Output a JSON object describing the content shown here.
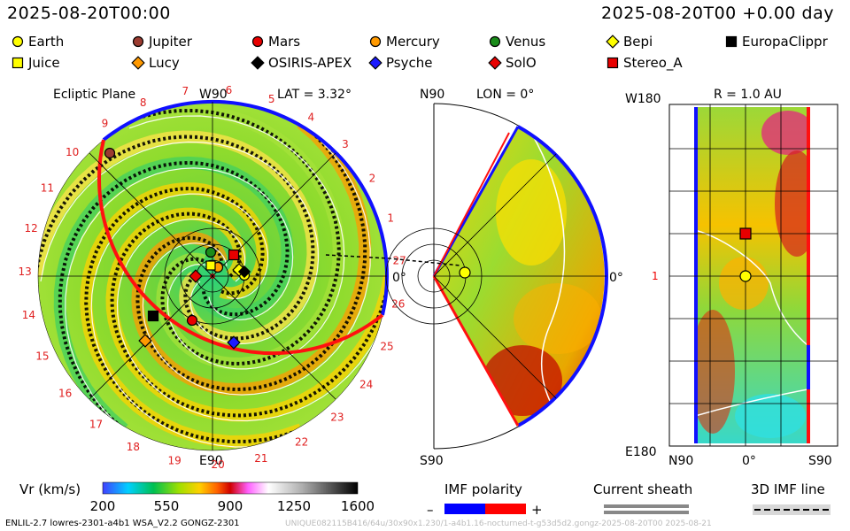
{
  "header": {
    "left_datetime": "2025-08-20T00:00",
    "right_datetime": "2025-08-20T00 +0.00 day"
  },
  "legend": [
    {
      "name": "Earth",
      "shape": "circle",
      "color": "#ffff00"
    },
    {
      "name": "Jupiter",
      "shape": "circle",
      "color": "#9b3b30"
    },
    {
      "name": "Mars",
      "shape": "circle",
      "color": "#e80000"
    },
    {
      "name": "Mercury",
      "shape": "circle",
      "color": "#ff9900"
    },
    {
      "name": "Venus",
      "shape": "circle",
      "color": "#1a8c1a"
    },
    {
      "name": "Bepi",
      "shape": "diamond",
      "color": "#ffff00"
    },
    {
      "name": "EuropaClippr",
      "shape": "square",
      "color": "#000000"
    },
    {
      "name": "Juice",
      "shape": "square",
      "color": "#ffff00"
    },
    {
      "name": "Lucy",
      "shape": "diamond",
      "color": "#ff9900"
    },
    {
      "name": "OSIRIS-APEX",
      "shape": "diamond",
      "color": "#000000"
    },
    {
      "name": "Psyche",
      "shape": "diamond",
      "color": "#1a1aff"
    },
    {
      "name": "SolO",
      "shape": "diamond",
      "color": "#e80000"
    },
    {
      "name": "Stereo_A",
      "shape": "square",
      "color": "#e80000"
    }
  ],
  "panels": {
    "ecliptic": {
      "title": "Ecliptic Plane",
      "top_label": "W90",
      "lat_label": "LAT = 3.32°",
      "bottom_label": "E90",
      "right_label": "0°",
      "carrington_ticks": [
        "1",
        "2",
        "3",
        "4",
        "5",
        "6",
        "7",
        "8",
        "9",
        "10",
        "11",
        "12",
        "13",
        "14",
        "15",
        "16",
        "17",
        "18",
        "19",
        "20",
        "21",
        "22",
        "23",
        "24",
        "25",
        "26",
        "27"
      ]
    },
    "meridional": {
      "top_label": "N90",
      "lon_label": "LON = 0°",
      "bottom_label": "S90",
      "right_label": "0°"
    },
    "sky": {
      "r_label": "R = 1.0 AU",
      "top_left_label": "W180",
      "left_mid_label": "1",
      "bottom_left_label": "E180",
      "x_left": "N90",
      "x_mid": "0°",
      "x_right": "S90"
    }
  },
  "chart_data": {
    "type": "heatmap",
    "quantity": "Vr (km/s)",
    "colorbar": {
      "label": "Vr (km/s)",
      "ticks": [
        "200",
        "550",
        "900",
        "1250",
        "1600"
      ],
      "range": [
        200,
        1600
      ]
    },
    "imf_polarity": {
      "label": "IMF polarity",
      "minus": "–",
      "plus": "+",
      "colors": [
        "#0000ff",
        "#ff0000"
      ]
    },
    "current_sheath": {
      "label": "Current sheath"
    },
    "imf_line": {
      "label": "3D IMF line"
    }
  },
  "footer": {
    "left": "ENLIL-2.7 lowres-2301-a4b1 WSA_V2.2 GONGZ-2301",
    "right": "UNIQUE082115B416/64u/30x90x1.230/1-a4b1.16-nocturned-t-g53d5d2.gongz-2025-08-20T00   2025-08-21"
  }
}
